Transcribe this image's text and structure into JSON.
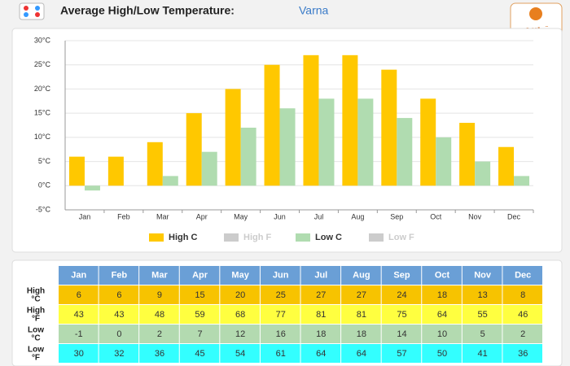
{
  "title": "Average High/Low Temperature:",
  "place": "Varna",
  "logo": "تيسم",
  "chart_data": {
    "type": "bar",
    "categories": [
      "Jan",
      "Feb",
      "Mar",
      "Apr",
      "May",
      "Jun",
      "Jul",
      "Aug",
      "Sep",
      "Oct",
      "Nov",
      "Dec"
    ],
    "series": [
      {
        "name": "High C",
        "color": "#ffc800",
        "values": [
          6,
          6,
          9,
          15,
          20,
          25,
          27,
          27,
          24,
          18,
          13,
          8
        ]
      },
      {
        "name": "Low C",
        "color": "#b0dcb0",
        "values": [
          -1,
          0,
          2,
          7,
          12,
          16,
          18,
          18,
          14,
          10,
          5,
          2
        ]
      }
    ],
    "legend": [
      {
        "name": "High C",
        "color": "#ffc800",
        "active": true
      },
      {
        "name": "High F",
        "color": "#cccccc",
        "active": false
      },
      {
        "name": "Low C",
        "color": "#b0dcb0",
        "active": true
      },
      {
        "name": "Low F",
        "color": "#cccccc",
        "active": false
      }
    ],
    "ylim": [
      -5,
      30
    ],
    "yticks": [
      {
        "value": -5,
        "label": "-5°C"
      },
      {
        "value": 0,
        "label": "0°C"
      },
      {
        "value": 5,
        "label": "5°C"
      },
      {
        "value": 10,
        "label": "10°C"
      },
      {
        "value": 15,
        "label": "15°C"
      },
      {
        "value": 20,
        "label": "20°C"
      },
      {
        "value": 25,
        "label": "25°C"
      },
      {
        "value": 30,
        "label": "30°C"
      }
    ],
    "grid": true
  },
  "table": {
    "columns": [
      "Jan",
      "Feb",
      "Mar",
      "Apr",
      "May",
      "Jun",
      "Jul",
      "Aug",
      "Sep",
      "Oct",
      "Nov",
      "Dec"
    ],
    "rows": [
      {
        "label": [
          "High",
          "°C"
        ],
        "color": "#f7c300",
        "values": [
          6,
          6,
          9,
          15,
          20,
          25,
          27,
          27,
          24,
          18,
          13,
          8
        ]
      },
      {
        "label": [
          "High",
          "°F"
        ],
        "color": "#ffff40",
        "values": [
          43,
          43,
          48,
          59,
          68,
          77,
          81,
          81,
          75,
          64,
          55,
          46
        ]
      },
      {
        "label": [
          "Low",
          "°C"
        ],
        "color": "#b3dab0",
        "values": [
          -1,
          0,
          2,
          7,
          12,
          16,
          18,
          18,
          14,
          10,
          5,
          2
        ]
      },
      {
        "label": [
          "Low",
          "°F"
        ],
        "color": "#33ffff",
        "values": [
          30,
          32,
          36,
          45,
          54,
          61,
          64,
          64,
          57,
          50,
          41,
          36
        ]
      }
    ]
  }
}
